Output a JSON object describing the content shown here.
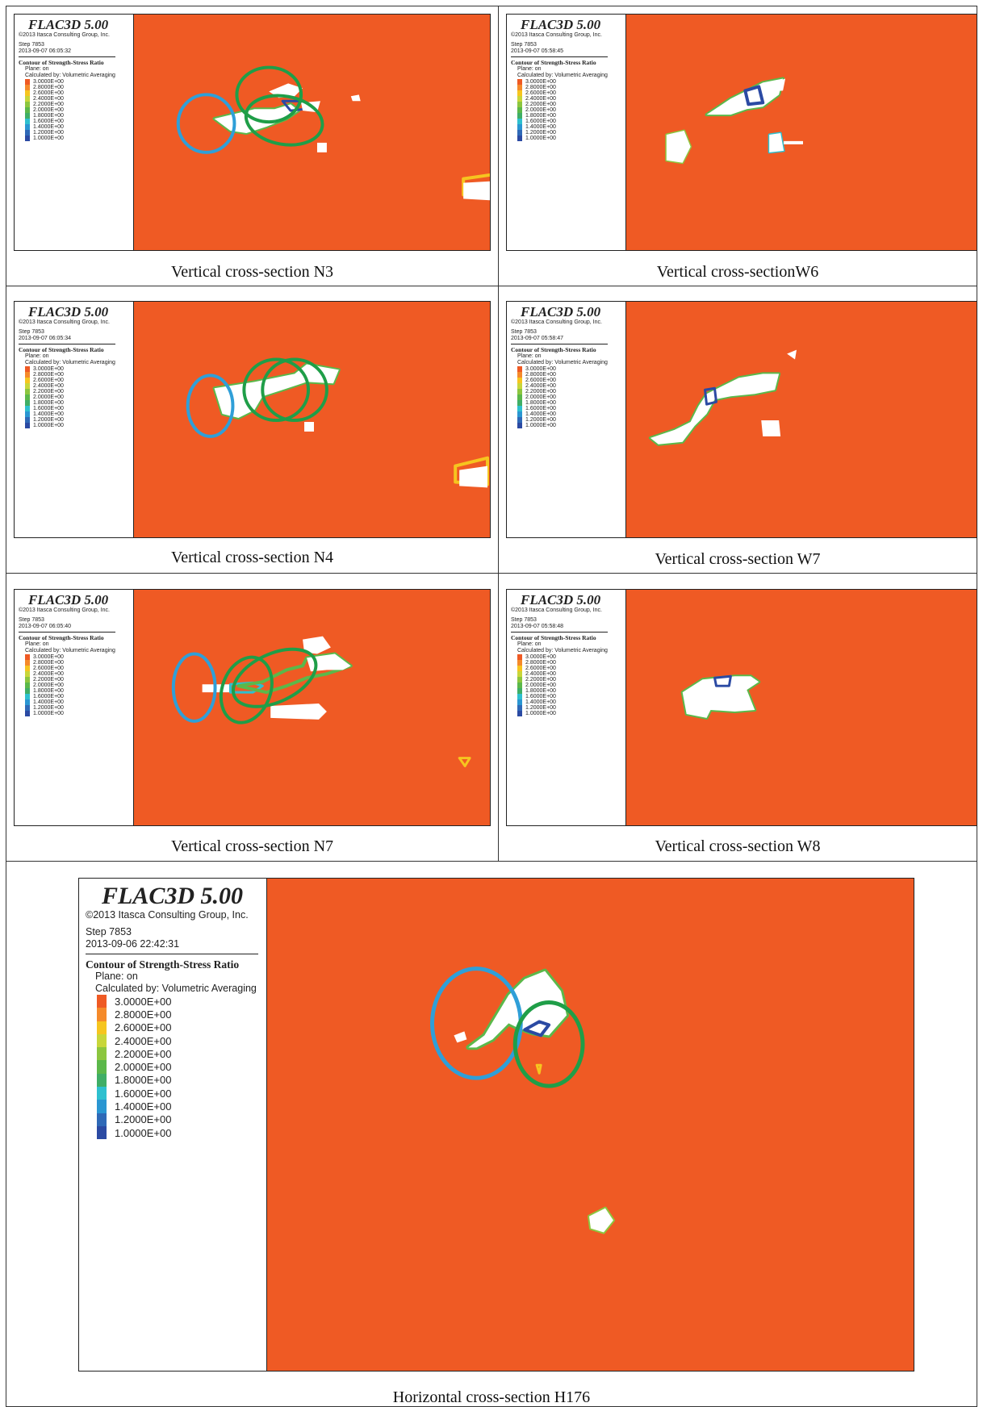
{
  "legend_common": {
    "product": "FLAC3D 5.00",
    "copyright": "©2013 Itasca Consulting Group, Inc.",
    "step": "Step 7853",
    "contour_title": "Contour of Strength-Stress Ratio",
    "plane": "Plane: on",
    "calculated_by": "Calculated by: Volumetric Averaging",
    "scale_values": [
      "3.0000E+00",
      "2.8000E+00",
      "2.6000E+00",
      "2.4000E+00",
      "2.2000E+00",
      "2.0000E+00",
      "1.8000E+00",
      "1.6000E+00",
      "1.4000E+00",
      "1.2000E+00",
      "1.0000E+00"
    ],
    "scale_colors": [
      "#ef5a24",
      "#f58a2a",
      "#f6c51f",
      "#c8d63a",
      "#8cc63f",
      "#5bb84a",
      "#3fae66",
      "#2ec0cf",
      "#2a96d2",
      "#2f69b7",
      "#2b4aa3"
    ]
  },
  "panels": [
    {
      "timestamp": "2013-09-07 06:05:32",
      "caption": "Vertical cross-section N3"
    },
    {
      "timestamp": "2013-09-07 05:58:45",
      "caption": "Vertical cross-sectionW6"
    },
    {
      "timestamp": "2013-09-07 06:05:34",
      "caption": "Vertical cross-section N4"
    },
    {
      "timestamp": "2013-09-07 05:58:47",
      "caption": "Vertical cross-section W7"
    },
    {
      "timestamp": "2013-09-07 06:05:40",
      "caption": "Vertical cross-section N7"
    },
    {
      "timestamp": "2013-09-07 05:58:48",
      "caption": "Vertical cross-section W8"
    }
  ],
  "horizontal_panel": {
    "timestamp": "2013-09-06 22:42:31",
    "caption": "Horizontal cross-section H176"
  },
  "colors": {
    "background": "#ef5a24",
    "cavity": "#ffffff",
    "circle_blue": "#2f9fd8",
    "circle_green": "#1f9e48"
  }
}
